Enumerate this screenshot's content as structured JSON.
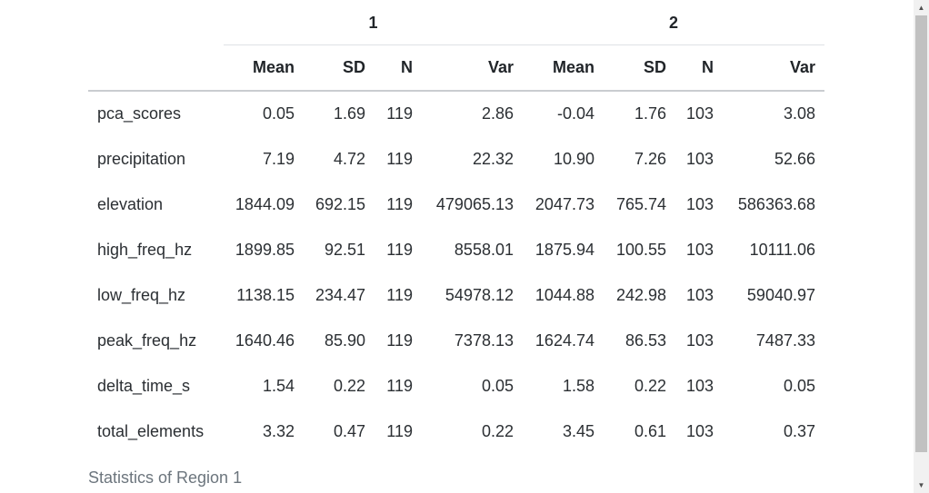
{
  "table": {
    "groups": [
      "1",
      "2"
    ],
    "columns": [
      "Mean",
      "SD",
      "N",
      "Var",
      "Mean",
      "SD",
      "N",
      "Var"
    ],
    "rows": [
      {
        "name": "pca_scores",
        "values": [
          "0.05",
          "1.69",
          "119",
          "2.86",
          "-0.04",
          "1.76",
          "103",
          "3.08"
        ]
      },
      {
        "name": "precipitation",
        "values": [
          "7.19",
          "4.72",
          "119",
          "22.32",
          "10.90",
          "7.26",
          "103",
          "52.66"
        ]
      },
      {
        "name": "elevation",
        "values": [
          "1844.09",
          "692.15",
          "119",
          "479065.13",
          "2047.73",
          "765.74",
          "103",
          "586363.68"
        ]
      },
      {
        "name": "high_freq_hz",
        "values": [
          "1899.85",
          "92.51",
          "119",
          "8558.01",
          "1875.94",
          "100.55",
          "103",
          "10111.06"
        ]
      },
      {
        "name": "low_freq_hz",
        "values": [
          "1138.15",
          "234.47",
          "119",
          "54978.12",
          "1044.88",
          "242.98",
          "103",
          "59040.97"
        ]
      },
      {
        "name": "peak_freq_hz",
        "values": [
          "1640.46",
          "85.90",
          "119",
          "7378.13",
          "1624.74",
          "86.53",
          "103",
          "7487.33"
        ]
      },
      {
        "name": "delta_time_s",
        "values": [
          "1.54",
          "0.22",
          "119",
          "0.05",
          "1.58",
          "0.22",
          "103",
          "0.05"
        ]
      },
      {
        "name": "total_elements",
        "values": [
          "3.32",
          "0.47",
          "119",
          "0.22",
          "3.45",
          "0.61",
          "103",
          "0.37"
        ]
      }
    ],
    "caption": "Statistics of Region 1"
  },
  "scrollbar": {
    "up_icon": "▲",
    "down_icon": "▼"
  }
}
